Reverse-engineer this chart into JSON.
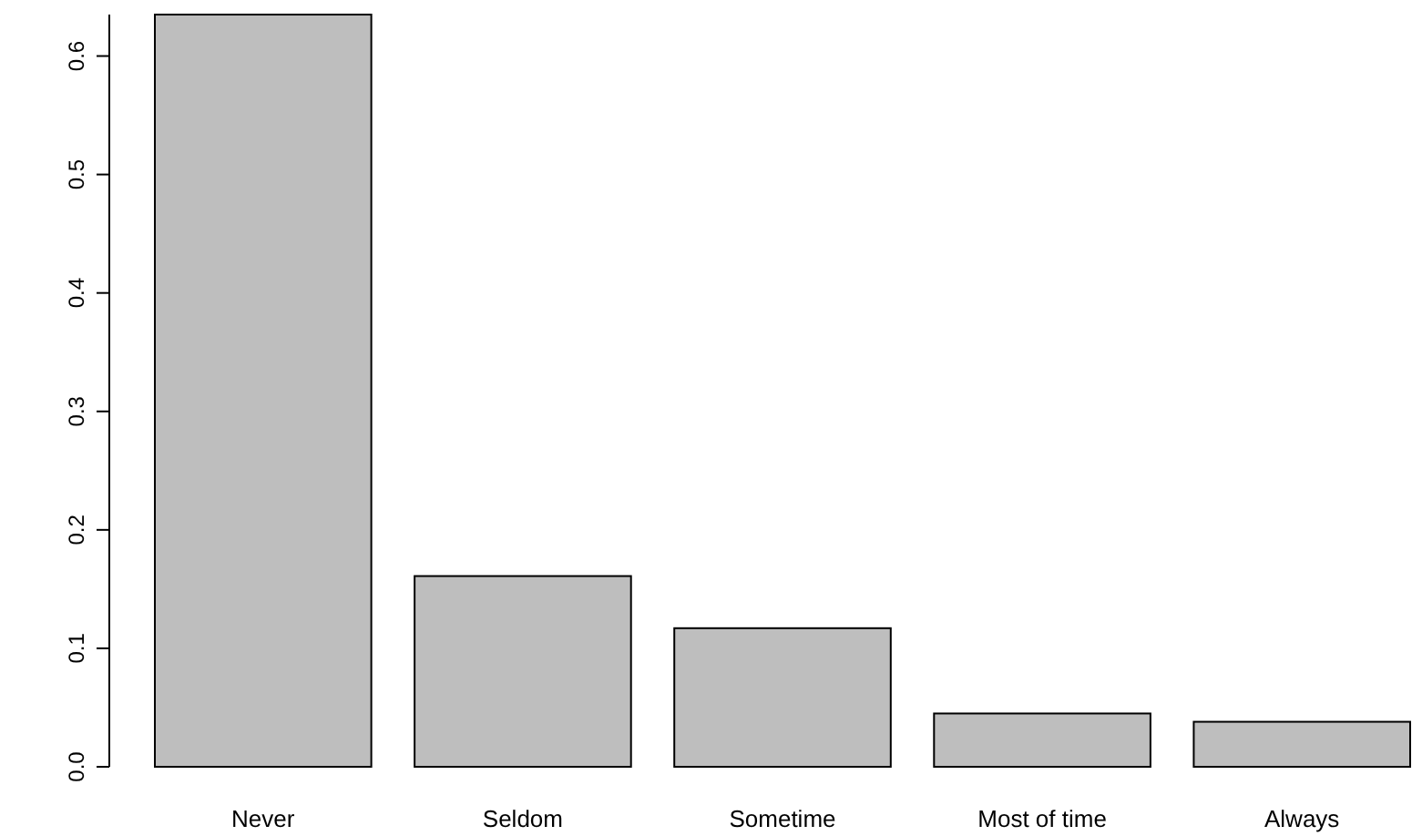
{
  "chart_data": {
    "type": "bar",
    "categories": [
      "Never",
      "Seldom",
      "Sometime",
      "Most of time",
      "Always"
    ],
    "values": [
      0.635,
      0.161,
      0.117,
      0.045,
      0.038
    ],
    "color": "#bebebe",
    "ylim": [
      0,
      0.635
    ],
    "yticks": [
      {
        "value": 0,
        "label": "0.0"
      },
      0.1,
      0.2,
      0.3,
      0.4,
      0.5,
      0.6
    ]
  }
}
